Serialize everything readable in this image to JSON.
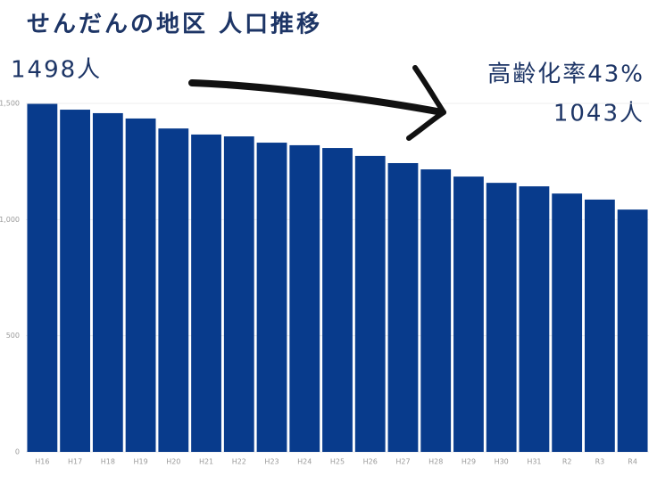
{
  "chart_data": {
    "type": "bar",
    "title": "せんだんの地区 人口推移",
    "annotations": [
      "1498人",
      "高齢化率43%",
      "1043人"
    ],
    "categories": [
      "H16",
      "H17",
      "H18",
      "H19",
      "H20",
      "H21",
      "H22",
      "H23",
      "H24",
      "H25",
      "H26",
      "H27",
      "H28",
      "H29",
      "H30",
      "H31",
      "R2",
      "R3",
      "R4"
    ],
    "values": [
      1498,
      1473,
      1458,
      1435,
      1392,
      1366,
      1358,
      1331,
      1320,
      1308,
      1274,
      1243,
      1216,
      1185,
      1158,
      1143,
      1112,
      1086,
      1043
    ],
    "color": "#083b8c",
    "ylim": [
      0,
      1500
    ],
    "yticks": [
      0,
      500,
      {
        "value": 1000,
        "label": "1,000"
      },
      {
        "value": 1500,
        "label": "1,500"
      }
    ],
    "grid": true
  }
}
